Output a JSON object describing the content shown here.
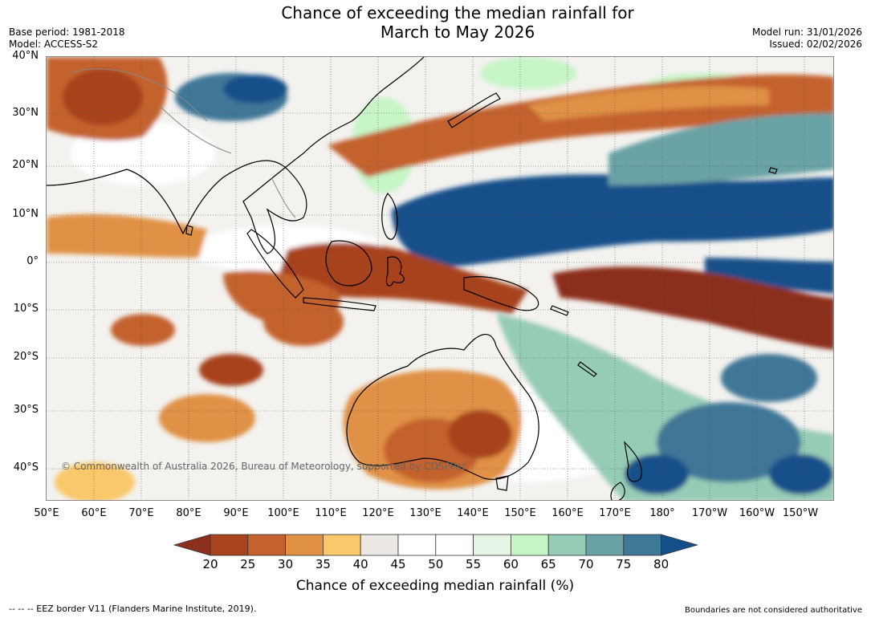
{
  "title": {
    "line1": "Chance of exceeding the median rainfall for",
    "line2": "March to May 2026"
  },
  "meta": {
    "base_period": "Base period: 1981-2018",
    "model": "Model: ACCESS-S2",
    "model_run": "Model run: 31/01/2026",
    "issued": "Issued: 02/02/2026"
  },
  "map": {
    "lat_labels": [
      "40°N",
      "30°N",
      "20°N",
      "10°N",
      "0°",
      "10°S",
      "20°S",
      "30°S",
      "40°S"
    ],
    "lon_labels": [
      "50°E",
      "60°E",
      "70°E",
      "80°E",
      "90°E",
      "100°E",
      "110°E",
      "120°E",
      "130°E",
      "140°E",
      "150°E",
      "160°E",
      "170°E",
      "180°",
      "170°W",
      "160°W",
      "150°W"
    ],
    "copyright": "© Commonwealth of Australia 2026, Bureau of Meteorology, supported by COSPPac"
  },
  "colorbar": {
    "ticks": [
      "20",
      "25",
      "30",
      "35",
      "40",
      "45",
      "50",
      "55",
      "60",
      "65",
      "70",
      "75",
      "80"
    ],
    "colors": [
      "#8c2f1e",
      "#a8431f",
      "#c4622d",
      "#e09144",
      "#f9c86a",
      "#ece9e4",
      "#ffffff",
      "#ffffff",
      "#e6f4e6",
      "#c6f5c6",
      "#96ccb6",
      "#6aa3a6",
      "#3f7797",
      "#144f8a"
    ],
    "label": "Chance of exceeding median rainfall (%)"
  },
  "footer": {
    "left": "--  --  -- EEZ border V11 (Flanders Marine Institute, 2019).",
    "right": "Boundaries are not considered authoritative"
  }
}
